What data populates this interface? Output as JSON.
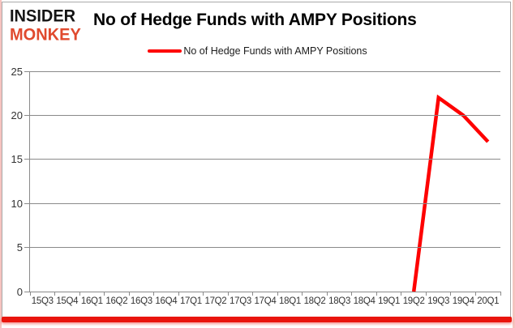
{
  "logo": {
    "line1": "INSIDER",
    "line2": "MONKEY"
  },
  "header": {
    "title": "No of Hedge Funds with AMPY Positions"
  },
  "legend": {
    "label": "No of Hedge Funds with AMPY Positions"
  },
  "colors": {
    "line": "#fe0000",
    "grid": "#8a8a8a",
    "axis_text": "#333333",
    "logo_accent": "#e04a2e",
    "bottom_bar": "#e9150d",
    "edge_glow": "#f6c3bf"
  },
  "chart_data": {
    "type": "line",
    "title": "No of Hedge Funds with AMPY Positions",
    "categories": [
      "15Q3",
      "15Q4",
      "16Q1",
      "16Q2",
      "16Q3",
      "16Q4",
      "17Q1",
      "17Q2",
      "17Q3",
      "17Q4",
      "18Q1",
      "18Q2",
      "18Q3",
      "18Q4",
      "19Q1",
      "19Q2",
      "19Q3",
      "19Q4",
      "20Q1"
    ],
    "series": [
      {
        "name": "No of Hedge Funds with AMPY Positions",
        "color": "#fe0000",
        "values": [
          null,
          null,
          null,
          null,
          null,
          null,
          null,
          null,
          null,
          null,
          null,
          null,
          null,
          null,
          null,
          0,
          22,
          20,
          17
        ]
      }
    ],
    "xlabel": "",
    "ylabel": "",
    "ylim": [
      0,
      25
    ],
    "yticks": [
      0,
      5,
      10,
      15,
      20,
      25
    ],
    "grid": true,
    "legend_position": "top-center"
  }
}
